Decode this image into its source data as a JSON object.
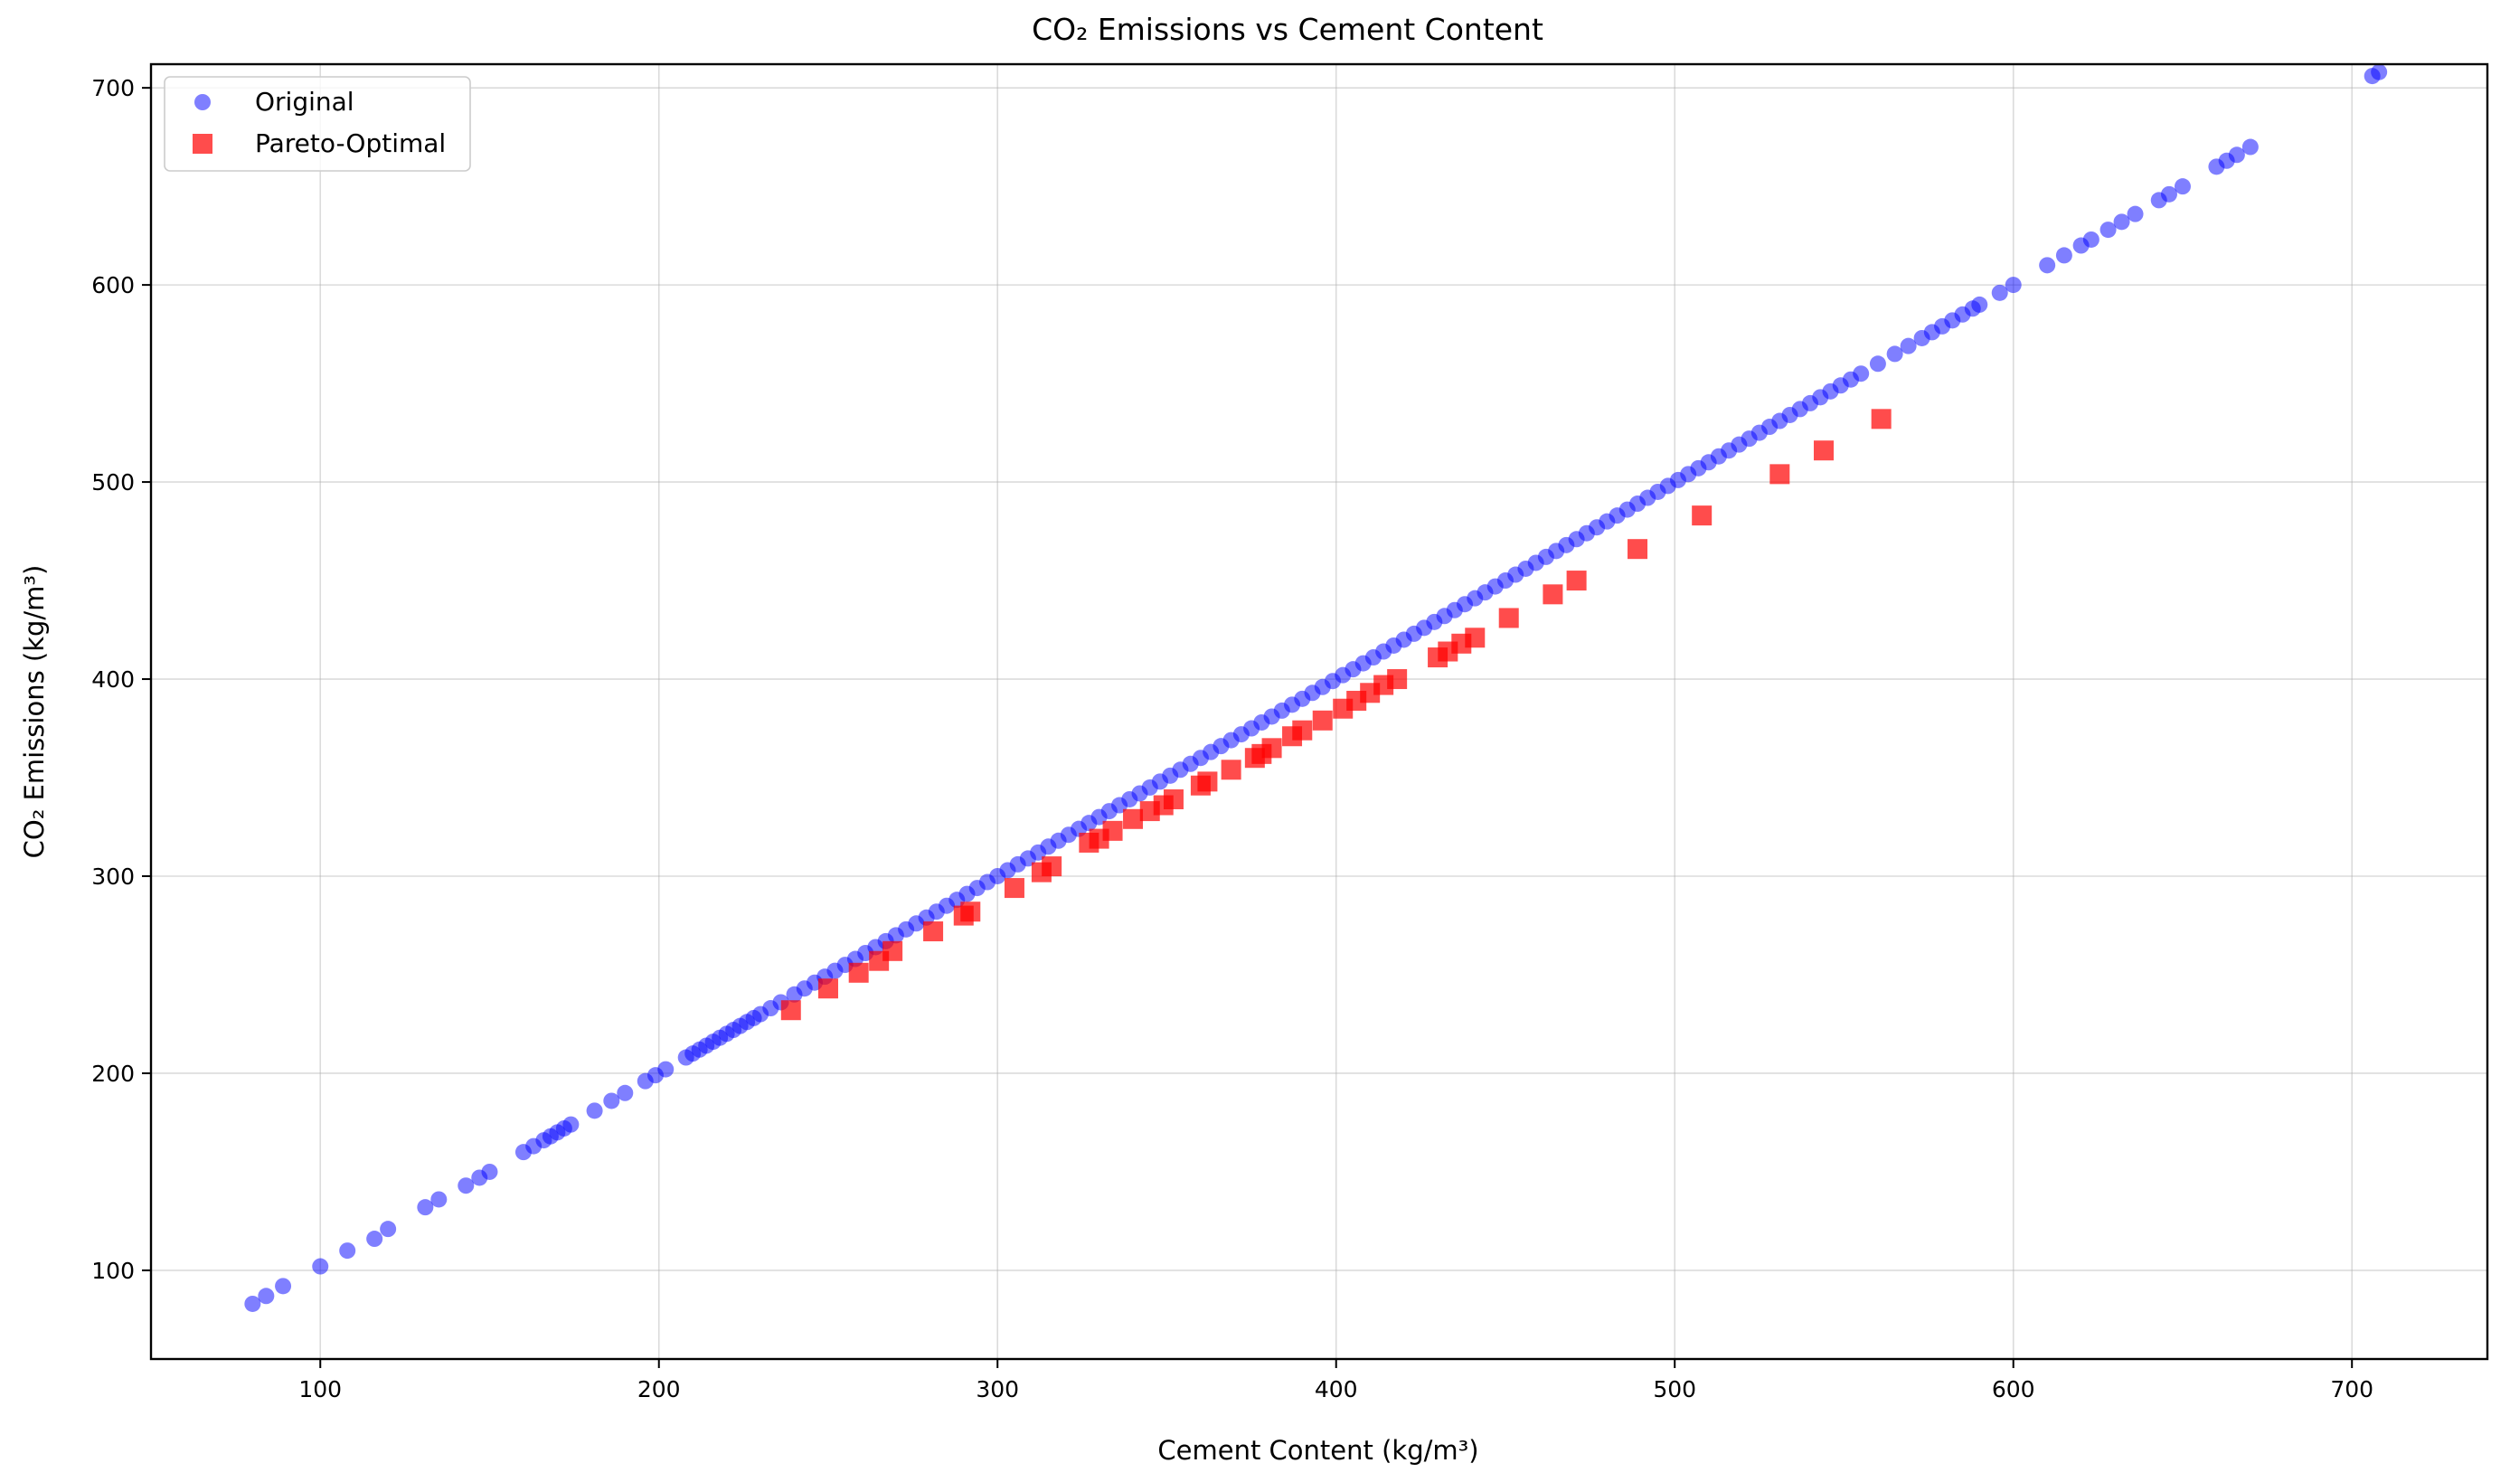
{
  "chart_data": {
    "type": "scatter",
    "title": "CO₂ Emissions vs Cement Content",
    "xlabel": "Cement Content (kg/m³)",
    "ylabel": "CO₂ Emissions (kg/m³)",
    "xlim": [
      50,
      740
    ],
    "ylim": [
      55,
      712
    ],
    "xticks": [
      100,
      200,
      300,
      400,
      500,
      600,
      700
    ],
    "yticks": [
      100,
      200,
      300,
      400,
      500,
      600,
      700
    ],
    "grid": true,
    "legend_position": "top-left",
    "series": [
      {
        "name": "Original",
        "marker": "circle",
        "color": "#0000ff",
        "alpha": 0.5,
        "x": [
          80,
          84,
          89,
          100,
          108,
          116,
          120,
          131,
          135,
          143,
          147,
          150,
          160,
          163,
          166,
          168,
          170,
          172,
          174,
          181,
          186,
          190,
          196,
          199,
          202,
          208,
          210,
          212,
          214,
          216,
          218,
          220,
          222,
          224,
          226,
          228,
          230,
          233,
          236,
          240,
          243,
          246,
          249,
          252,
          255,
          258,
          261,
          264,
          267,
          270,
          273,
          276,
          279,
          282,
          285,
          288,
          291,
          294,
          297,
          300,
          303,
          306,
          309,
          312,
          315,
          318,
          321,
          324,
          327,
          330,
          333,
          336,
          339,
          342,
          345,
          348,
          351,
          354,
          357,
          360,
          363,
          366,
          369,
          372,
          375,
          378,
          381,
          384,
          387,
          390,
          393,
          396,
          399,
          402,
          405,
          408,
          411,
          414,
          417,
          420,
          423,
          426,
          429,
          432,
          435,
          438,
          441,
          444,
          447,
          450,
          453,
          456,
          459,
          462,
          465,
          468,
          471,
          474,
          477,
          480,
          483,
          486,
          489,
          492,
          495,
          498,
          501,
          504,
          507,
          510,
          513,
          516,
          519,
          522,
          525,
          528,
          531,
          534,
          537,
          540,
          543,
          546,
          549,
          552,
          555,
          560,
          565,
          569,
          573,
          576,
          579,
          582,
          585,
          588,
          590,
          596,
          600,
          610,
          615,
          620,
          623,
          628,
          632,
          636,
          643,
          646,
          650,
          660,
          663,
          666,
          670,
          706,
          708
        ],
        "y": [
          83,
          87,
          92,
          102,
          110,
          116,
          121,
          132,
          136,
          143,
          147,
          150,
          160,
          163,
          166,
          168,
          170,
          172,
          174,
          181,
          186,
          190,
          196,
          199,
          202,
          208,
          210,
          212,
          214,
          216,
          218,
          220,
          222,
          224,
          226,
          228,
          230,
          233,
          236,
          240,
          243,
          246,
          249,
          252,
          255,
          258,
          261,
          264,
          267,
          270,
          273,
          276,
          279,
          282,
          285,
          288,
          291,
          294,
          297,
          300,
          303,
          306,
          309,
          312,
          315,
          318,
          321,
          324,
          327,
          330,
          333,
          336,
          339,
          342,
          345,
          348,
          351,
          354,
          357,
          360,
          363,
          366,
          369,
          372,
          375,
          378,
          381,
          384,
          387,
          390,
          393,
          396,
          399,
          402,
          405,
          408,
          411,
          414,
          417,
          420,
          423,
          426,
          429,
          432,
          435,
          438,
          441,
          444,
          447,
          450,
          453,
          456,
          459,
          462,
          465,
          468,
          471,
          474,
          477,
          480,
          483,
          486,
          489,
          492,
          495,
          498,
          501,
          504,
          507,
          510,
          513,
          516,
          519,
          522,
          525,
          528,
          531,
          534,
          537,
          540,
          543,
          546,
          549,
          552,
          555,
          560,
          565,
          569,
          573,
          576,
          579,
          582,
          585,
          588,
          590,
          596,
          600,
          610,
          615,
          620,
          623,
          628,
          632,
          636,
          643,
          646,
          650,
          660,
          663,
          666,
          670,
          706,
          708
        ]
      },
      {
        "name": "Pareto-Optimal",
        "marker": "square",
        "color": "#ff0000",
        "alpha": 0.7,
        "x": [
          239,
          250,
          259,
          265,
          269,
          281,
          290,
          292,
          305,
          313,
          316,
          327,
          330,
          334,
          340,
          345,
          349,
          352,
          360,
          362,
          369,
          376,
          378,
          381,
          387,
          390,
          396,
          402,
          406,
          410,
          414,
          418,
          430,
          433,
          437,
          441,
          451,
          464,
          471,
          489,
          508,
          531,
          544,
          561
        ],
        "y": [
          232,
          243,
          251,
          257,
          262,
          272,
          280,
          282,
          294,
          302,
          305,
          317,
          319,
          323,
          329,
          333,
          336,
          339,
          346,
          348,
          354,
          360,
          362,
          365,
          371,
          374,
          379,
          385,
          389,
          393,
          397,
          400,
          411,
          414,
          418,
          421,
          431,
          443,
          450,
          466,
          483,
          504,
          516,
          532
        ]
      }
    ]
  }
}
